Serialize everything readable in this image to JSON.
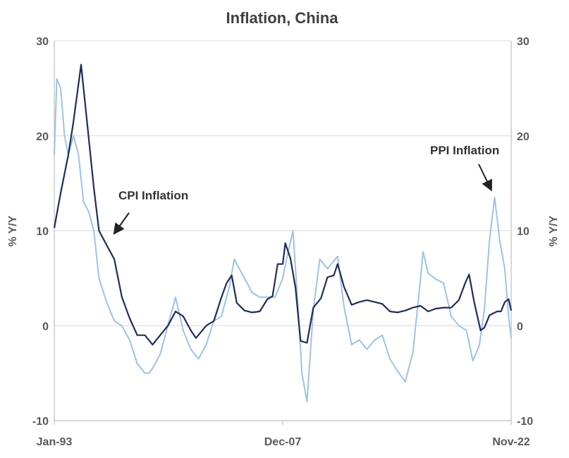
{
  "chart_data": {
    "type": "line",
    "title": "Inflation, China",
    "ylabel_left": "% Y/Y",
    "ylabel_right": "% Y/Y",
    "ylim": [
      -10,
      30
    ],
    "yticks": [
      -10,
      0,
      10,
      20,
      30
    ],
    "ytick_labels": [
      "-10",
      "0",
      "10",
      "20",
      "30"
    ],
    "xticks": [
      "Jan-93",
      "Dec-07",
      "Nov-22"
    ],
    "x_range": [
      "1993-01",
      "2022-11"
    ],
    "grid": "horizontal",
    "colors": {
      "cpi": "#1f2d5a",
      "ppi": "#9dc3e6",
      "grid": "#d9d9d9",
      "axis": "#bfbfbf",
      "text": "#595959"
    },
    "annotations": [
      {
        "text": "CPI Inflation",
        "points_to": "1996-08"
      },
      {
        "text": "PPI Inflation",
        "points_to": "2021-10"
      }
    ],
    "series": [
      {
        "name": "CPI Inflation",
        "x": [
          "1993-01",
          "1993-06",
          "1993-12",
          "1994-04",
          "1994-10",
          "1995-03",
          "1995-08",
          "1995-12",
          "1996-06",
          "1996-12",
          "1997-06",
          "1997-12",
          "1998-06",
          "1998-12",
          "1999-06",
          "1999-12",
          "2000-06",
          "2000-12",
          "2001-06",
          "2001-12",
          "2002-04",
          "2002-12",
          "2003-06",
          "2003-12",
          "2004-04",
          "2004-08",
          "2004-12",
          "2005-06",
          "2005-12",
          "2006-06",
          "2006-12",
          "2007-04",
          "2007-08",
          "2007-12",
          "2008-02",
          "2008-06",
          "2008-10",
          "2009-02",
          "2009-07",
          "2009-12",
          "2010-06",
          "2010-11",
          "2011-04",
          "2011-07",
          "2011-12",
          "2012-06",
          "2012-12",
          "2013-06",
          "2013-12",
          "2014-06",
          "2014-12",
          "2015-06",
          "2015-12",
          "2016-06",
          "2016-12",
          "2017-06",
          "2017-12",
          "2018-06",
          "2018-12",
          "2019-06",
          "2019-11",
          "2020-02",
          "2020-06",
          "2020-11",
          "2021-02",
          "2021-06",
          "2021-12",
          "2022-03",
          "2022-06",
          "2022-09",
          "2022-11"
        ],
        "values": [
          10.3,
          14.0,
          18.0,
          21.5,
          27.5,
          21.0,
          14.5,
          10.0,
          8.5,
          7.0,
          3.0,
          0.8,
          -1.0,
          -1.0,
          -2.0,
          -1.0,
          0.0,
          1.5,
          1.0,
          -0.5,
          -1.3,
          0.0,
          0.5,
          3.0,
          4.5,
          5.3,
          2.4,
          1.6,
          1.4,
          1.5,
          2.8,
          3.1,
          6.5,
          6.5,
          8.7,
          7.1,
          4.0,
          -1.6,
          -1.8,
          1.9,
          2.9,
          5.1,
          5.3,
          6.5,
          4.1,
          2.2,
          2.5,
          2.7,
          2.5,
          2.3,
          1.5,
          1.4,
          1.6,
          1.9,
          2.1,
          1.5,
          1.8,
          1.9,
          1.9,
          2.7,
          4.5,
          5.4,
          2.5,
          -0.5,
          -0.2,
          1.1,
          1.5,
          1.5,
          2.5,
          2.8,
          1.6
        ]
      },
      {
        "name": "PPI Inflation",
        "x": [
          "1993-01",
          "1993-03",
          "1993-06",
          "1993-09",
          "1993-12",
          "1994-04",
          "1994-08",
          "1994-12",
          "1995-04",
          "1995-08",
          "1995-12",
          "1996-06",
          "1996-12",
          "1997-06",
          "1997-12",
          "1998-06",
          "1998-12",
          "1999-03",
          "1999-06",
          "1999-12",
          "2000-06",
          "2000-12",
          "2001-06",
          "2001-12",
          "2002-06",
          "2002-12",
          "2003-06",
          "2003-12",
          "2004-06",
          "2004-10",
          "2005-06",
          "2005-12",
          "2006-06",
          "2006-12",
          "2007-06",
          "2007-12",
          "2008-03",
          "2008-08",
          "2008-12",
          "2009-03",
          "2009-07",
          "2009-12",
          "2010-05",
          "2010-11",
          "2011-07",
          "2011-12",
          "2012-06",
          "2012-12",
          "2013-06",
          "2013-12",
          "2014-06",
          "2014-12",
          "2015-06",
          "2015-12",
          "2016-06",
          "2016-12",
          "2017-02",
          "2017-06",
          "2017-12",
          "2018-06",
          "2018-12",
          "2019-06",
          "2019-12",
          "2020-05",
          "2020-10",
          "2021-02",
          "2021-06",
          "2021-10",
          "2022-02",
          "2022-06",
          "2022-09",
          "2022-11"
        ],
        "values": [
          18,
          26,
          25,
          20,
          18,
          20,
          18,
          13,
          12,
          10,
          5,
          2.5,
          0.5,
          0,
          -1.5,
          -4,
          -5,
          -5,
          -4.5,
          -3,
          0,
          3,
          -0.5,
          -2.5,
          -3.5,
          -2,
          0.5,
          1,
          4,
          7,
          5,
          3.5,
          3,
          3,
          3,
          5,
          7,
          10,
          2,
          -5,
          -8,
          1.7,
          7,
          6,
          7.3,
          2,
          -2,
          -1.5,
          -2.5,
          -1.5,
          -1,
          -3.5,
          -4.8,
          -5.9,
          -2.8,
          5,
          7.8,
          5.5,
          4.9,
          4.5,
          1,
          0,
          -0.5,
          -3.7,
          -2.1,
          1.7,
          9,
          13.5,
          9,
          6,
          0.9,
          -1.3
        ]
      }
    ]
  }
}
